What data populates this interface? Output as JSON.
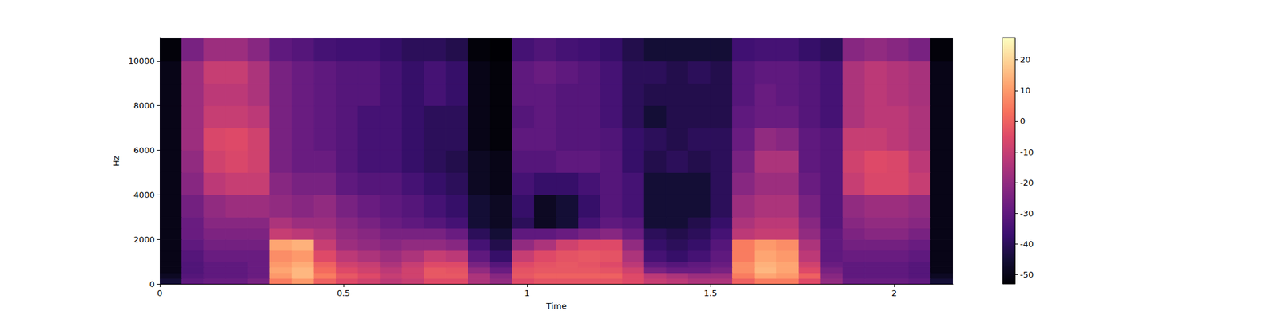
{
  "chart_data": {
    "type": "heatmap",
    "xlabel": "Time",
    "ylabel": "Hz",
    "xlim": [
      0,
      2.16
    ],
    "ylim": [
      0,
      11025
    ],
    "xticks": [
      0,
      0.5,
      1,
      1.5,
      2
    ],
    "yticks": [
      0,
      2000,
      4000,
      6000,
      8000,
      10000
    ],
    "grid": false,
    "color": "magma",
    "x_edges": [
      0,
      0.06,
      0.12,
      0.18,
      0.24,
      0.3,
      0.36,
      0.42,
      0.48,
      0.54,
      0.6,
      0.66,
      0.72,
      0.78,
      0.84,
      0.9,
      0.96,
      1.02,
      1.08,
      1.14,
      1.2,
      1.26,
      1.32,
      1.38,
      1.44,
      1.5,
      1.56,
      1.62,
      1.68,
      1.74,
      1.8,
      1.86,
      1.92,
      1.98,
      2.04,
      2.1,
      2.16
    ],
    "y_edges": [
      0,
      250,
      500,
      750,
      1000,
      1500,
      2000,
      2500,
      3000,
      4000,
      5000,
      6000,
      7000,
      8000,
      9000,
      10000,
      11025
    ],
    "cells": [
      [
        -45,
        -30,
        -28,
        -28,
        -25,
        5,
        10,
        0,
        -5,
        -8,
        -12,
        -10,
        -5,
        -5,
        -15,
        -20,
        -5,
        -3,
        -3,
        -3,
        -3,
        -5,
        -10,
        -12,
        -15,
        -15,
        0,
        5,
        5,
        -5,
        -20,
        -28,
        -28,
        -28,
        -30,
        -45
      ],
      [
        -48,
        -32,
        -30,
        -30,
        -28,
        10,
        15,
        5,
        -2,
        -5,
        -10,
        -8,
        -2,
        -2,
        -15,
        -22,
        -2,
        0,
        0,
        0,
        0,
        -5,
        -12,
        -15,
        -18,
        -18,
        5,
        12,
        10,
        0,
        -22,
        -30,
        -30,
        -30,
        -32,
        -48
      ],
      [
        -50,
        -33,
        -30,
        -30,
        -28,
        12,
        15,
        2,
        -5,
        -8,
        -12,
        -8,
        -2,
        -3,
        -20,
        -28,
        -3,
        -2,
        -2,
        -2,
        -3,
        -8,
        -25,
        -28,
        -28,
        -25,
        8,
        15,
        12,
        -5,
        -25,
        -30,
        -30,
        -30,
        -32,
        -50
      ],
      [
        -50,
        -33,
        -30,
        -30,
        -28,
        10,
        13,
        0,
        -8,
        -10,
        -15,
        -10,
        -5,
        -5,
        -25,
        -32,
        -5,
        -3,
        -2,
        -3,
        -5,
        -12,
        -30,
        -32,
        -30,
        -28,
        8,
        14,
        12,
        -8,
        -28,
        -30,
        -30,
        -30,
        -32,
        -50
      ],
      [
        -50,
        -32,
        -28,
        -28,
        -28,
        8,
        10,
        -5,
        -12,
        -15,
        -18,
        -15,
        -10,
        -12,
        -30,
        -38,
        -10,
        -5,
        -3,
        -2,
        -3,
        -15,
        -35,
        -38,
        -35,
        -30,
        5,
        12,
        10,
        -12,
        -30,
        -28,
        -28,
        -28,
        -30,
        -50
      ],
      [
        -50,
        -30,
        -26,
        -26,
        -26,
        12,
        14,
        -10,
        -18,
        -20,
        -22,
        -20,
        -20,
        -22,
        -35,
        -42,
        -20,
        -15,
        -8,
        -5,
        -5,
        -20,
        -38,
        -40,
        -38,
        -32,
        5,
        10,
        8,
        -15,
        -30,
        -26,
        -26,
        -26,
        -28,
        -50
      ],
      [
        -50,
        -28,
        -24,
        -24,
        -24,
        -10,
        -12,
        -15,
        -20,
        -22,
        -25,
        -25,
        -25,
        -28,
        -40,
        -45,
        -30,
        -30,
        -28,
        -25,
        -22,
        -28,
        -40,
        -42,
        -40,
        -35,
        -12,
        -10,
        -10,
        -20,
        -30,
        -24,
        -22,
        -22,
        -25,
        -50
      ],
      [
        -50,
        -28,
        -22,
        -22,
        -22,
        -15,
        -18,
        -18,
        -22,
        -25,
        -28,
        -30,
        -32,
        -35,
        -45,
        -48,
        -40,
        -48,
        -45,
        -35,
        -30,
        -32,
        -45,
        -45,
        -42,
        -38,
        -15,
        -12,
        -12,
        -22,
        -32,
        -22,
        -20,
        -20,
        -22,
        -50
      ],
      [
        -50,
        -26,
        -20,
        -18,
        -18,
        -20,
        -22,
        -20,
        -25,
        -28,
        -30,
        -32,
        -35,
        -38,
        -45,
        -48,
        -38,
        -48,
        -45,
        -38,
        -32,
        -35,
        -45,
        -45,
        -45,
        -40,
        -18,
        -15,
        -15,
        -25,
        -32,
        -20,
        -18,
        -18,
        -20,
        -50
      ],
      [
        -50,
        -22,
        -12,
        -10,
        -10,
        -22,
        -25,
        -25,
        -30,
        -32,
        -32,
        -35,
        -38,
        -40,
        -48,
        -50,
        -35,
        -38,
        -38,
        -35,
        -32,
        -35,
        -45,
        -45,
        -45,
        -40,
        -22,
        -18,
        -18,
        -28,
        -32,
        -10,
        -6,
        -6,
        -10,
        -50
      ],
      [
        -50,
        -20,
        -8,
        -6,
        -8,
        -25,
        -28,
        -28,
        -32,
        -35,
        -35,
        -38,
        -40,
        -42,
        -48,
        -50,
        -32,
        -32,
        -30,
        -30,
        -32,
        -38,
        -42,
        -40,
        -42,
        -40,
        -25,
        -15,
        -15,
        -30,
        -32,
        -8,
        -5,
        -6,
        -12,
        -50
      ],
      [
        -50,
        -18,
        -6,
        -5,
        -8,
        -25,
        -28,
        -30,
        -32,
        -35,
        -35,
        -38,
        -40,
        -40,
        -50,
        -52,
        -30,
        -30,
        -32,
        -32,
        -33,
        -38,
        -40,
        -42,
        -40,
        -40,
        -28,
        -20,
        -22,
        -30,
        -32,
        -10,
        -10,
        -12,
        -15,
        -50
      ],
      [
        -50,
        -18,
        -10,
        -10,
        -12,
        -25,
        -28,
        -30,
        -32,
        -35,
        -35,
        -38,
        -40,
        -40,
        -50,
        -52,
        -32,
        -30,
        -32,
        -32,
        -35,
        -40,
        -45,
        -42,
        -42,
        -42,
        -30,
        -28,
        -28,
        -32,
        -35,
        -15,
        -12,
        -12,
        -15,
        -50
      ],
      [
        -50,
        -18,
        -12,
        -12,
        -15,
        -25,
        -28,
        -30,
        -32,
        -32,
        -35,
        -38,
        -35,
        -38,
        -50,
        -52,
        -30,
        -30,
        -32,
        -32,
        -35,
        -40,
        -42,
        -42,
        -42,
        -42,
        -32,
        -28,
        -30,
        -32,
        -35,
        -15,
        -12,
        -14,
        -16,
        -50
      ],
      [
        -50,
        -18,
        -10,
        -10,
        -15,
        -25,
        -28,
        -30,
        -32,
        -32,
        -35,
        -38,
        -35,
        -38,
        -50,
        -52,
        -30,
        -28,
        -30,
        -32,
        -35,
        -40,
        -40,
        -42,
        -40,
        -42,
        -32,
        -30,
        -30,
        -32,
        -35,
        -15,
        -12,
        -14,
        -16,
        -50
      ],
      [
        -52,
        -25,
        -18,
        -18,
        -22,
        -30,
        -32,
        -35,
        -36,
        -36,
        -38,
        -40,
        -40,
        -42,
        -52,
        -53,
        -35,
        -33,
        -35,
        -36,
        -38,
        -42,
        -45,
        -45,
        -45,
        -45,
        -36,
        -35,
        -35,
        -38,
        -40,
        -22,
        -20,
        -22,
        -25,
        -52
      ]
    ],
    "colorbar": {
      "range": [
        -53,
        27
      ],
      "ticks": [
        -50,
        -40,
        -30,
        -20,
        -10,
        0,
        10,
        20
      ]
    }
  }
}
